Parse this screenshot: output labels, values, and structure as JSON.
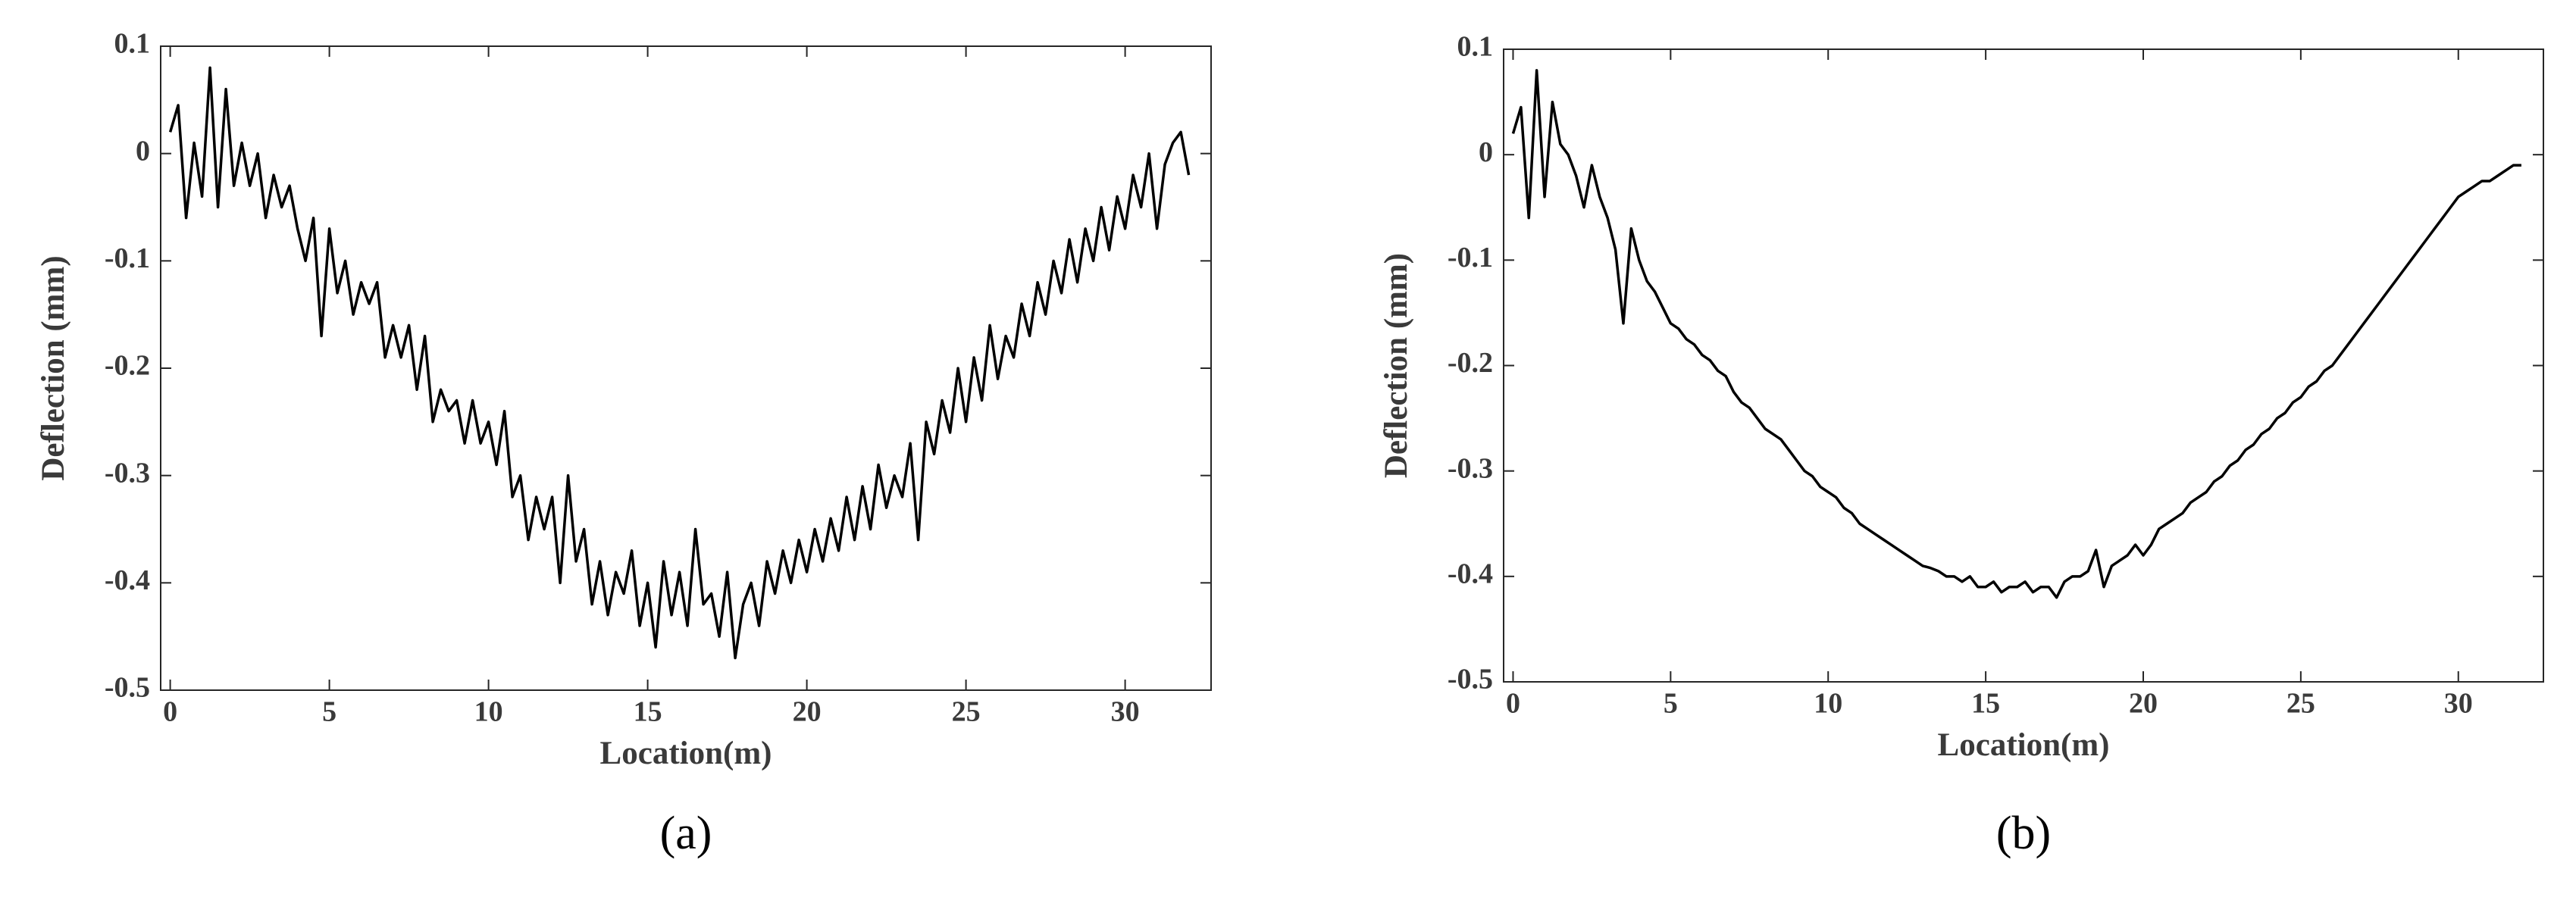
{
  "chart_data": [
    {
      "type": "line",
      "caption": "(a)",
      "xlabel": "Location(m)",
      "ylabel": "Deflection (mm)",
      "color": "#000000",
      "xlim": [
        -0.3,
        32.7
      ],
      "ylim": [
        -0.5,
        0.1
      ],
      "xticks": [
        0,
        5,
        10,
        15,
        20,
        25,
        30
      ],
      "yticks": [
        -0.5,
        -0.4,
        -0.3,
        -0.2,
        -0.1,
        0,
        0.1
      ],
      "x": [
        0,
        0.25,
        0.5,
        0.75,
        1,
        1.25,
        1.5,
        1.75,
        2,
        2.25,
        2.5,
        2.75,
        3,
        3.25,
        3.5,
        3.75,
        4,
        4.25,
        4.5,
        4.75,
        5,
        5.25,
        5.5,
        5.75,
        6,
        6.25,
        6.5,
        6.75,
        7,
        7.25,
        7.5,
        7.75,
        8,
        8.25,
        8.5,
        8.75,
        9,
        9.25,
        9.5,
        9.75,
        10,
        10.25,
        10.5,
        10.75,
        11,
        11.25,
        11.5,
        11.75,
        12,
        12.25,
        12.5,
        12.75,
        13,
        13.25,
        13.5,
        13.75,
        14,
        14.25,
        14.5,
        14.75,
        15,
        15.25,
        15.5,
        15.75,
        16,
        16.25,
        16.5,
        16.75,
        17,
        17.25,
        17.5,
        17.75,
        18,
        18.25,
        18.5,
        18.75,
        19,
        19.25,
        19.5,
        19.75,
        20,
        20.25,
        20.5,
        20.75,
        21,
        21.25,
        21.5,
        21.75,
        22,
        22.25,
        22.5,
        22.75,
        23,
        23.25,
        23.5,
        23.75,
        24,
        24.25,
        24.5,
        24.75,
        25,
        25.25,
        25.5,
        25.75,
        26,
        26.25,
        26.5,
        26.75,
        27,
        27.25,
        27.5,
        27.75,
        28,
        28.25,
        28.5,
        28.75,
        29,
        29.25,
        29.5,
        29.75,
        30,
        30.25,
        30.5,
        30.75,
        31,
        31.25,
        31.5,
        31.75,
        32
      ],
      "values": [
        0.02,
        0.045,
        -0.06,
        0.01,
        -0.04,
        0.08,
        -0.05,
        0.06,
        -0.03,
        0.01,
        -0.03,
        0.0,
        -0.06,
        -0.02,
        -0.05,
        -0.03,
        -0.07,
        -0.1,
        -0.06,
        -0.17,
        -0.07,
        -0.13,
        -0.1,
        -0.15,
        -0.12,
        -0.14,
        -0.12,
        -0.19,
        -0.16,
        -0.19,
        -0.16,
        -0.22,
        -0.17,
        -0.25,
        -0.22,
        -0.24,
        -0.23,
        -0.27,
        -0.23,
        -0.27,
        -0.25,
        -0.29,
        -0.24,
        -0.32,
        -0.3,
        -0.36,
        -0.32,
        -0.35,
        -0.32,
        -0.4,
        -0.3,
        -0.38,
        -0.35,
        -0.42,
        -0.38,
        -0.43,
        -0.39,
        -0.41,
        -0.37,
        -0.44,
        -0.4,
        -0.46,
        -0.38,
        -0.43,
        -0.39,
        -0.44,
        -0.35,
        -0.42,
        -0.41,
        -0.45,
        -0.39,
        -0.47,
        -0.42,
        -0.4,
        -0.44,
        -0.38,
        -0.41,
        -0.37,
        -0.4,
        -0.36,
        -0.39,
        -0.35,
        -0.38,
        -0.34,
        -0.37,
        -0.32,
        -0.36,
        -0.31,
        -0.35,
        -0.29,
        -0.33,
        -0.3,
        -0.32,
        -0.27,
        -0.36,
        -0.25,
        -0.28,
        -0.23,
        -0.26,
        -0.2,
        -0.25,
        -0.19,
        -0.23,
        -0.16,
        -0.21,
        -0.17,
        -0.19,
        -0.14,
        -0.17,
        -0.12,
        -0.15,
        -0.1,
        -0.13,
        -0.08,
        -0.12,
        -0.07,
        -0.1,
        -0.05,
        -0.09,
        -0.04,
        -0.07,
        -0.02,
        -0.05,
        0.0,
        -0.07,
        -0.01,
        0.01,
        0.02,
        -0.02
      ]
    },
    {
      "type": "line",
      "caption": "(b)",
      "xlabel": "Location(m)",
      "ylabel": "Deflection (mm)",
      "color": "#000000",
      "xlim": [
        -0.3,
        32.7
      ],
      "ylim": [
        -0.5,
        0.1
      ],
      "xticks": [
        0,
        5,
        10,
        15,
        20,
        25,
        30
      ],
      "yticks": [
        -0.5,
        -0.4,
        -0.3,
        -0.2,
        -0.1,
        0,
        0.1
      ],
      "x": [
        0,
        0.25,
        0.5,
        0.75,
        1,
        1.25,
        1.5,
        1.75,
        2,
        2.25,
        2.5,
        2.75,
        3,
        3.25,
        3.5,
        3.75,
        4,
        4.25,
        4.5,
        4.75,
        5,
        5.25,
        5.5,
        5.75,
        6,
        6.25,
        6.5,
        6.75,
        7,
        7.25,
        7.5,
        7.75,
        8,
        8.25,
        8.5,
        8.75,
        9,
        9.25,
        9.5,
        9.75,
        10,
        10.25,
        10.5,
        10.75,
        11,
        11.25,
        11.5,
        11.75,
        12,
        12.25,
        12.5,
        12.75,
        13,
        13.25,
        13.5,
        13.75,
        14,
        14.25,
        14.5,
        14.75,
        15,
        15.25,
        15.5,
        15.75,
        16,
        16.25,
        16.5,
        16.75,
        17,
        17.25,
        17.5,
        17.75,
        18,
        18.25,
        18.5,
        18.75,
        19,
        19.25,
        19.5,
        19.75,
        20,
        20.25,
        20.5,
        20.75,
        21,
        21.25,
        21.5,
        21.75,
        22,
        22.25,
        22.5,
        22.75,
        23,
        23.25,
        23.5,
        23.75,
        24,
        24.25,
        24.5,
        24.75,
        25,
        25.25,
        25.5,
        25.75,
        26,
        26.25,
        26.5,
        26.75,
        27,
        27.25,
        27.5,
        27.75,
        28,
        28.25,
        28.5,
        28.75,
        29,
        29.25,
        29.5,
        29.75,
        30,
        30.25,
        30.5,
        30.75,
        31,
        31.25,
        31.5,
        31.75,
        32
      ],
      "values": [
        0.02,
        0.045,
        -0.06,
        0.08,
        -0.04,
        0.05,
        0.01,
        0.0,
        -0.02,
        -0.05,
        -0.01,
        -0.04,
        -0.06,
        -0.09,
        -0.16,
        -0.07,
        -0.1,
        -0.12,
        -0.13,
        -0.145,
        -0.16,
        -0.165,
        -0.175,
        -0.18,
        -0.19,
        -0.195,
        -0.205,
        -0.21,
        -0.225,
        -0.235,
        -0.24,
        -0.25,
        -0.26,
        -0.265,
        -0.27,
        -0.28,
        -0.29,
        -0.3,
        -0.305,
        -0.315,
        -0.32,
        -0.325,
        -0.335,
        -0.34,
        -0.35,
        -0.355,
        -0.36,
        -0.365,
        -0.37,
        -0.375,
        -0.38,
        -0.385,
        -0.39,
        -0.392,
        -0.395,
        -0.4,
        -0.4,
        -0.405,
        -0.4,
        -0.41,
        -0.41,
        -0.405,
        -0.415,
        -0.41,
        -0.41,
        -0.405,
        -0.415,
        -0.41,
        -0.41,
        -0.42,
        -0.405,
        -0.4,
        -0.4,
        -0.395,
        -0.375,
        -0.41,
        -0.39,
        -0.385,
        -0.38,
        -0.37,
        -0.38,
        -0.37,
        -0.355,
        -0.35,
        -0.345,
        -0.34,
        -0.33,
        -0.325,
        -0.32,
        -0.31,
        -0.305,
        -0.295,
        -0.29,
        -0.28,
        -0.275,
        -0.265,
        -0.26,
        -0.25,
        -0.245,
        -0.235,
        -0.23,
        -0.22,
        -0.215,
        -0.205,
        -0.2,
        -0.19,
        -0.18,
        -0.17,
        -0.16,
        -0.15,
        -0.14,
        -0.13,
        -0.12,
        -0.11,
        -0.1,
        -0.09,
        -0.08,
        -0.07,
        -0.06,
        -0.05,
        -0.04,
        -0.035,
        -0.03,
        -0.025,
        -0.025,
        -0.02,
        -0.015,
        -0.01,
        -0.01
      ]
    }
  ]
}
